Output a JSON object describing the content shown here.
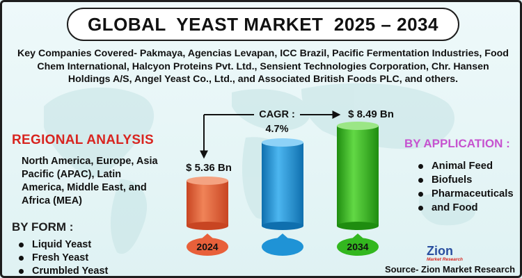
{
  "title": "GLOBAL  YEAST MARKET  2025 – 2034",
  "companies_text": "Key Companies Covered- Pakmaya, Agencias Levapan, ICC Brazil, Pacific Fermentation Industries, Food Chem International, Halcyon Proteins Pvt. Ltd., Sensient Technologies Corporation, Chr. Hansen Holdings A/S, Angel Yeast Co., Ltd., and Associated British Foods PLC, and others.",
  "regional": {
    "title": "REGIONAL ANALYSIS",
    "text": "North America, Europe, Asia Pacific (APAC), Latin America, Middle East, and Africa (MEA)"
  },
  "by_form": {
    "title": "BY FORM :",
    "items": [
      "Liquid Yeast",
      "Fresh Yeast",
      "Crumbled Yeast"
    ]
  },
  "by_application": {
    "title": "BY APPLICATION :",
    "items": [
      "Animal Feed",
      "Biofuels",
      "Pharmaceuticals",
      "and Food"
    ]
  },
  "market": {
    "cagr_label": "CAGR :",
    "cagr_value": "4.7%",
    "start_value_label": "$ 5.36 Bn",
    "end_value_label": "$ 8.49 Bn",
    "start_year": "2024",
    "end_year": "2034"
  },
  "chart_data": {
    "type": "bar",
    "categories": [
      "2024",
      "",
      "2034"
    ],
    "values": [
      5.36,
      null,
      8.49
    ],
    "colors": [
      "#e8603a",
      "#1f93d6",
      "#33b71f"
    ]
  },
  "logo": {
    "main": "Zion",
    "sub": "Market Research"
  },
  "source_text": "Source- Zion Market Research",
  "colors": {
    "accent_red": "#d8241f",
    "accent_purple": "#c653cf",
    "background": "#e3f4f5",
    "orange": "#e8603a",
    "blue": "#1f93d6",
    "green": "#33b71f"
  }
}
